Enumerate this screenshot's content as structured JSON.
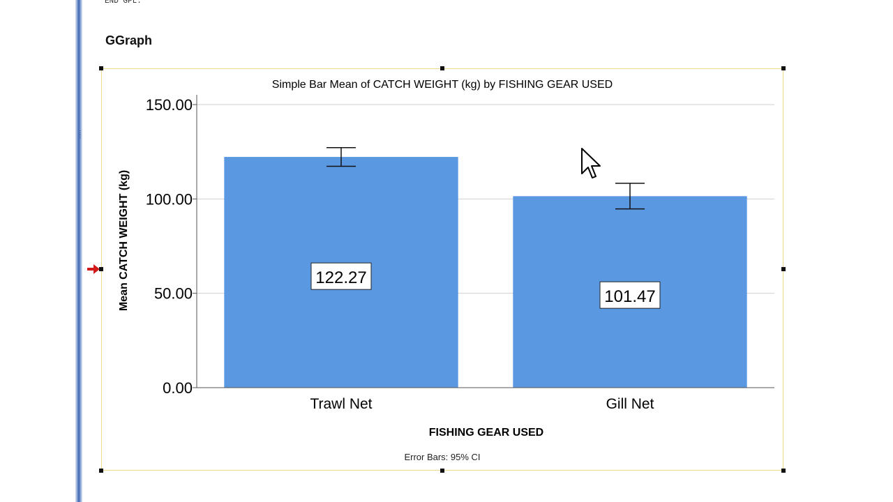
{
  "syntax": {
    "last_line": "END GPL."
  },
  "output": {
    "heading": "GGraph"
  },
  "colors": {
    "bar": "#5b98e2",
    "grid": "#cfcfcf",
    "frame": "#f2dc8c",
    "splitter": "#3c63ad",
    "pointer": "#d21a1a"
  },
  "chart_data": {
    "type": "bar",
    "title": "Simple Bar Mean of CATCH WEIGHT (kg) by FISHING GEAR USED",
    "xlabel": "FISHING GEAR USED",
    "ylabel": "Mean CATCH WEIGHT (kg)",
    "footnote": "Error Bars: 95% CI",
    "categories": [
      "Trawl Net",
      "Gill Net"
    ],
    "values": [
      122.27,
      101.47
    ],
    "value_labels": [
      "122.27",
      "101.47"
    ],
    "error_bars": [
      {
        "low": 117.3,
        "high": 127.2
      },
      {
        "low": 94.7,
        "high": 108.3
      }
    ],
    "ylim": [
      0,
      150
    ],
    "yticks": [
      0,
      50,
      100,
      150
    ],
    "ytick_labels": [
      "0.00",
      "50.00",
      "100.00",
      "150.00"
    ],
    "grid": true,
    "legend": "none"
  }
}
